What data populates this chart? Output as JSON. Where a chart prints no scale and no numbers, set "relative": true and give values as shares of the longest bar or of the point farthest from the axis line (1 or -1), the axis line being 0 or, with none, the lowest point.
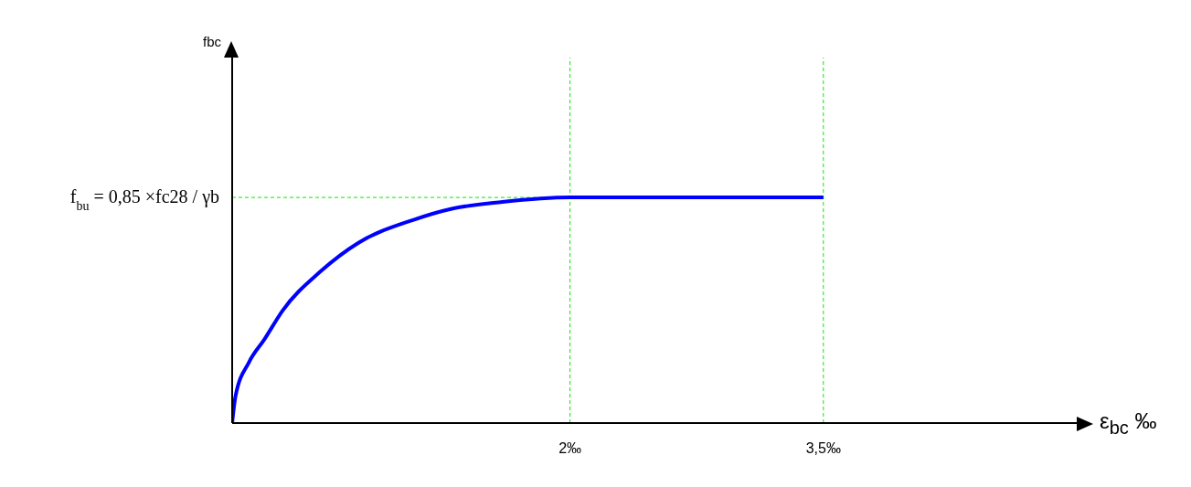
{
  "chart_data": {
    "type": "line",
    "relative": true,
    "xlabel": "ε$_{bc}$ ‰",
    "x": [
      0,
      0.02,
      0.1,
      0.19,
      0.3,
      0.52,
      0.75,
      1.07,
      1.3,
      1.6,
      2,
      3.5
    ],
    "series": [
      {
        "color": "#0000ff",
        "values": [
          0,
          0.12,
          0.27,
          0.37,
          0.5,
          0.67,
          0.8,
          0.9,
          0.95,
          0.98,
          1,
          1
        ]
      }
    ],
    "xlim": [
      0,
      5
    ],
    "xticks": [
      {
        "value": 2,
        "label": "2‰"
      },
      {
        "value": 3.5,
        "label": "3,5‰"
      }
    ],
    "ref_lines": [
      {
        "axis": "x",
        "value": 2,
        "color": "#00ee00",
        "line_style": "dashed"
      },
      {
        "axis": "x",
        "value": 3.5,
        "color": "#00ee00",
        "line_style": "dashed"
      },
      {
        "axis": "y",
        "value": 1,
        "color": "#00ee00",
        "line_style": "dashed"
      }
    ],
    "annotations": [
      "fbc",
      "f$_{bu}$ = 0,85 ×fc28 / γb"
    ],
    "grid": false,
    "marker": "none",
    "line_style": "solid"
  }
}
